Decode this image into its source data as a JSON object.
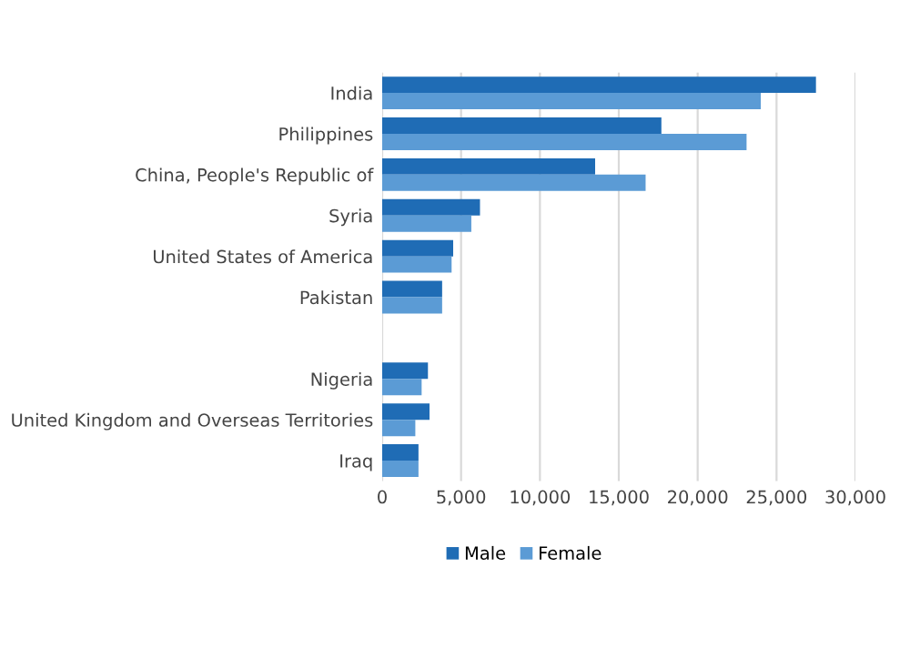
{
  "chart_data": {
    "type": "bar",
    "orientation": "horizontal",
    "categories": [
      "India",
      "Philippines",
      "China, People's Republic of",
      "Syria",
      "United States of America",
      "Pakistan",
      null,
      "Nigeria",
      "United Kingdom and Overseas Territories",
      "Iraq"
    ],
    "series": [
      {
        "name": "Male",
        "color": "#1f6cb5",
        "values": [
          27500,
          17700,
          13500,
          6200,
          4500,
          3800,
          null,
          2900,
          3000,
          2300
        ]
      },
      {
        "name": "Female",
        "color": "#5b9bd5",
        "values": [
          24000,
          23100,
          16700,
          5650,
          4400,
          3800,
          null,
          2500,
          2100,
          2300
        ]
      }
    ],
    "xlim": [
      0,
      30000
    ],
    "xticks": [
      {
        "value": 0,
        "label": "0"
      },
      {
        "value": 5000,
        "label": "5,000"
      },
      {
        "value": 10000,
        "label": "10,000"
      },
      {
        "value": 15000,
        "label": "15,000"
      },
      {
        "value": 20000,
        "label": "20,000"
      },
      {
        "value": 25000,
        "label": "25,000"
      },
      {
        "value": 30000,
        "label": "30,000"
      }
    ],
    "grid": "x",
    "legend": "bottom"
  }
}
